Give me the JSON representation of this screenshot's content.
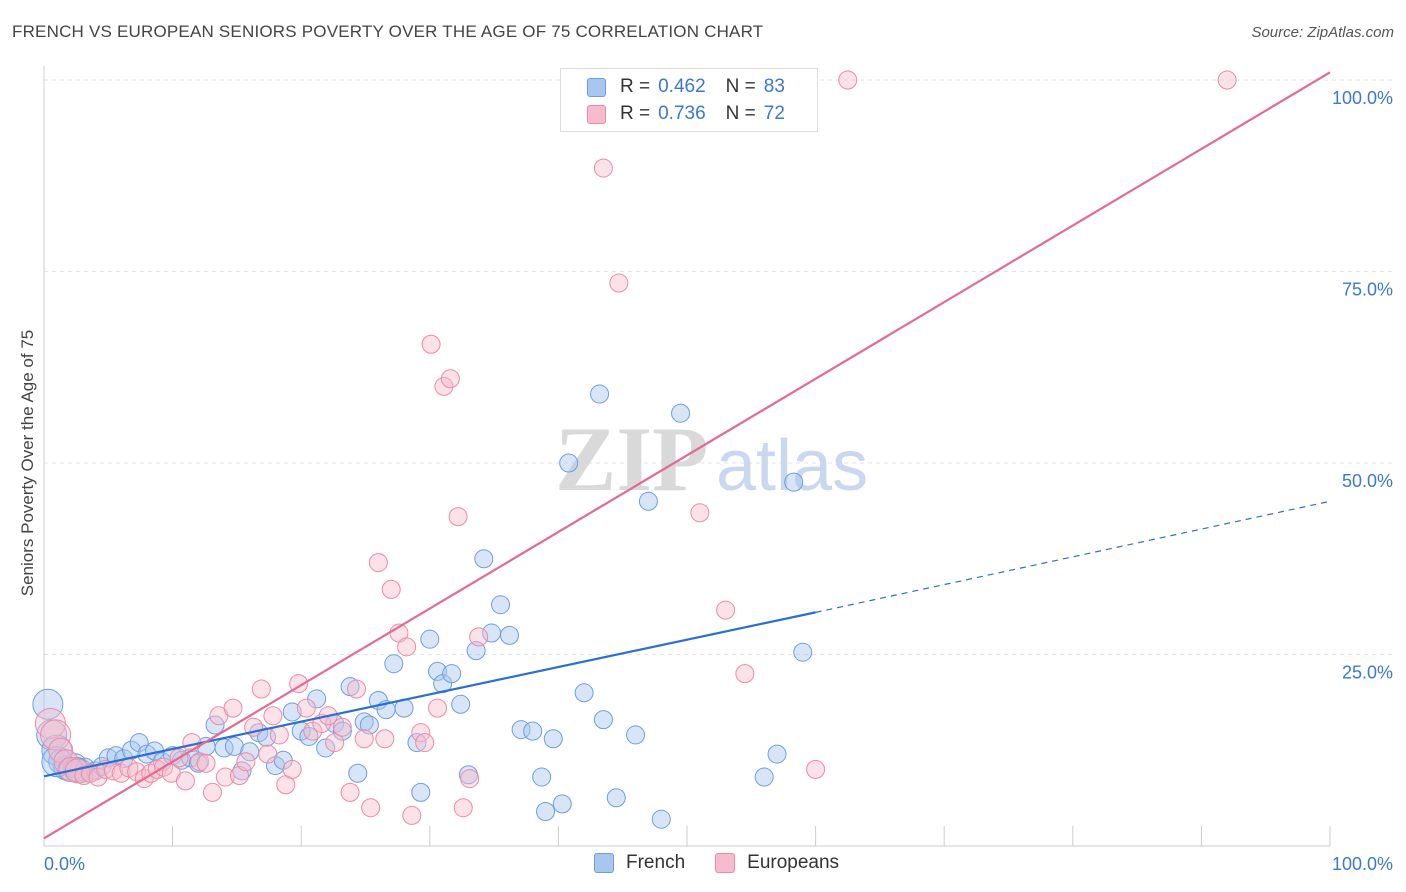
{
  "title": "FRENCH VS EUROPEAN SENIORS POVERTY OVER THE AGE OF 75 CORRELATION CHART",
  "source": "Source: ZipAtlas.com",
  "watermark": {
    "zip": "ZIP",
    "atlas": "atlas"
  },
  "legend": {
    "french": {
      "r_label": "R =",
      "r_value": "0.462",
      "n_label": "N =",
      "n_value": "83",
      "color": "#a9c6ee",
      "border": "#6c9ee0"
    },
    "europeans": {
      "r_label": "R =",
      "r_value": "0.736",
      "n_label": "N =",
      "n_value": "72",
      "color": "#f6bccd",
      "border": "#ec8aa8"
    }
  },
  "bottom_legend": [
    "French",
    "Europeans"
  ],
  "chart_data": {
    "type": "scatter",
    "ylabel": "Seniors Poverty Over the Age of 75",
    "xlabel": "",
    "x_ticks": [
      "0.0%",
      "100.0%"
    ],
    "y_ticks": [
      "25.0%",
      "50.0%",
      "75.0%",
      "100.0%"
    ],
    "xlim": [
      0,
      100
    ],
    "ylim": [
      0,
      100
    ],
    "grid": true,
    "series": [
      {
        "name": "French",
        "color": "#6c9ee0",
        "line_color": "#2a6fd1",
        "trend": {
          "x0": 0,
          "y0": 9.1,
          "x1": 60,
          "y1": 30.5,
          "dashed_to_x": 100,
          "dashed_to_y": 45.0
        },
        "points": [
          [
            0.3,
            18.5
          ],
          [
            0.6,
            14.5
          ],
          [
            1.0,
            12.5
          ],
          [
            1.3,
            11.0
          ],
          [
            1.7,
            10.2
          ],
          [
            2.0,
            10.0
          ],
          [
            2.4,
            10.5
          ],
          [
            2.8,
            9.8
          ],
          [
            3.2,
            10.3
          ],
          [
            3.6,
            9.5
          ],
          [
            4.0,
            9.8
          ],
          [
            4.5,
            10.4
          ],
          [
            5.0,
            11.5
          ],
          [
            5.6,
            11.8
          ],
          [
            6.2,
            11.4
          ],
          [
            6.8,
            12.5
          ],
          [
            7.4,
            13.5
          ],
          [
            8.0,
            12.0
          ],
          [
            8.6,
            12.4
          ],
          [
            9.2,
            11.0
          ],
          [
            10.0,
            11.8
          ],
          [
            10.7,
            11.2
          ],
          [
            11.4,
            11.5
          ],
          [
            12.0,
            10.8
          ],
          [
            12.6,
            13.0
          ],
          [
            13.3,
            15.8
          ],
          [
            14.0,
            12.8
          ],
          [
            14.8,
            13.0
          ],
          [
            15.4,
            9.8
          ],
          [
            16.0,
            12.3
          ],
          [
            16.7,
            14.8
          ],
          [
            17.3,
            14.2
          ],
          [
            18.0,
            10.5
          ],
          [
            18.6,
            11.2
          ],
          [
            19.3,
            17.5
          ],
          [
            20.0,
            15.0
          ],
          [
            20.6,
            14.3
          ],
          [
            21.2,
            19.2
          ],
          [
            21.9,
            12.8
          ],
          [
            22.6,
            16.0
          ],
          [
            23.2,
            15.0
          ],
          [
            23.8,
            20.8
          ],
          [
            24.4,
            9.5
          ],
          [
            24.9,
            16.2
          ],
          [
            25.3,
            15.8
          ],
          [
            26.0,
            19.0
          ],
          [
            26.6,
            17.8
          ],
          [
            27.2,
            23.8
          ],
          [
            28.0,
            18.0
          ],
          [
            29.0,
            13.5
          ],
          [
            29.3,
            7.0
          ],
          [
            30.0,
            27.0
          ],
          [
            30.6,
            22.8
          ],
          [
            31.0,
            21.2
          ],
          [
            31.7,
            22.5
          ],
          [
            32.4,
            18.5
          ],
          [
            33.0,
            9.3
          ],
          [
            33.6,
            25.5
          ],
          [
            34.2,
            37.5
          ],
          [
            34.8,
            27.8
          ],
          [
            35.5,
            31.5
          ],
          [
            36.2,
            27.5
          ],
          [
            37.1,
            15.2
          ],
          [
            38.0,
            15.0
          ],
          [
            38.7,
            9.0
          ],
          [
            39.0,
            4.5
          ],
          [
            39.6,
            14.0
          ],
          [
            40.3,
            5.5
          ],
          [
            40.8,
            50.0
          ],
          [
            42.0,
            20.0
          ],
          [
            43.2,
            59.0
          ],
          [
            43.5,
            16.5
          ],
          [
            44.5,
            6.3
          ],
          [
            46.0,
            14.5
          ],
          [
            47.0,
            45.0
          ],
          [
            48.0,
            3.5
          ],
          [
            49.5,
            56.5
          ],
          [
            56.0,
            9.0
          ],
          [
            57.0,
            12.0
          ],
          [
            58.3,
            47.5
          ],
          [
            59.0,
            25.3
          ],
          [
            1.0,
            11.0
          ],
          [
            2.5,
            10.0
          ]
        ]
      },
      {
        "name": "Europeans",
        "color": "#ec8aa8",
        "line_color": "#e36a93",
        "trend": {
          "x0": 0,
          "y0": 1.0,
          "x1": 100,
          "y1": 101.0
        },
        "points": [
          [
            0.5,
            16.0
          ],
          [
            0.9,
            14.5
          ],
          [
            1.3,
            12.5
          ],
          [
            1.7,
            11.0
          ],
          [
            2.1,
            10.0
          ],
          [
            2.6,
            9.8
          ],
          [
            3.1,
            9.2
          ],
          [
            3.6,
            9.5
          ],
          [
            4.2,
            9.0
          ],
          [
            4.8,
            10.0
          ],
          [
            5.4,
            9.8
          ],
          [
            6.0,
            9.5
          ],
          [
            6.6,
            10.2
          ],
          [
            7.2,
            9.7
          ],
          [
            7.8,
            8.8
          ],
          [
            8.3,
            9.5
          ],
          [
            8.8,
            10.0
          ],
          [
            9.3,
            10.3
          ],
          [
            9.9,
            9.5
          ],
          [
            10.5,
            11.5
          ],
          [
            11.0,
            8.5
          ],
          [
            11.5,
            13.5
          ],
          [
            12.1,
            11.0
          ],
          [
            12.6,
            10.8
          ],
          [
            13.1,
            7.0
          ],
          [
            13.6,
            17.0
          ],
          [
            14.1,
            9.0
          ],
          [
            14.7,
            18.0
          ],
          [
            15.2,
            9.2
          ],
          [
            15.7,
            11.0
          ],
          [
            16.3,
            15.5
          ],
          [
            16.9,
            20.5
          ],
          [
            17.4,
            12.0
          ],
          [
            17.8,
            17.0
          ],
          [
            18.3,
            14.5
          ],
          [
            18.8,
            8.0
          ],
          [
            19.3,
            10.0
          ],
          [
            19.8,
            21.2
          ],
          [
            20.4,
            18.0
          ],
          [
            20.9,
            15.0
          ],
          [
            21.6,
            16.0
          ],
          [
            22.1,
            17.0
          ],
          [
            22.6,
            13.5
          ],
          [
            23.2,
            15.5
          ],
          [
            23.8,
            7.0
          ],
          [
            24.3,
            20.5
          ],
          [
            24.9,
            14.0
          ],
          [
            25.4,
            5.0
          ],
          [
            26.0,
            37.0
          ],
          [
            26.5,
            14.0
          ],
          [
            27.0,
            33.5
          ],
          [
            27.6,
            27.8
          ],
          [
            28.2,
            26.0
          ],
          [
            28.6,
            4.0
          ],
          [
            29.3,
            14.8
          ],
          [
            29.6,
            13.5
          ],
          [
            30.1,
            65.5
          ],
          [
            30.6,
            18.0
          ],
          [
            31.1,
            60.0
          ],
          [
            31.6,
            61.0
          ],
          [
            32.2,
            43.0
          ],
          [
            32.6,
            5.0
          ],
          [
            33.1,
            8.8
          ],
          [
            33.8,
            27.3
          ],
          [
            43.5,
            88.5
          ],
          [
            44.7,
            73.5
          ],
          [
            51.0,
            43.5
          ],
          [
            53.0,
            30.8
          ],
          [
            54.5,
            22.5
          ],
          [
            60.0,
            10.0
          ],
          [
            62.5,
            100.0
          ],
          [
            92.0,
            100.0
          ]
        ]
      }
    ]
  }
}
